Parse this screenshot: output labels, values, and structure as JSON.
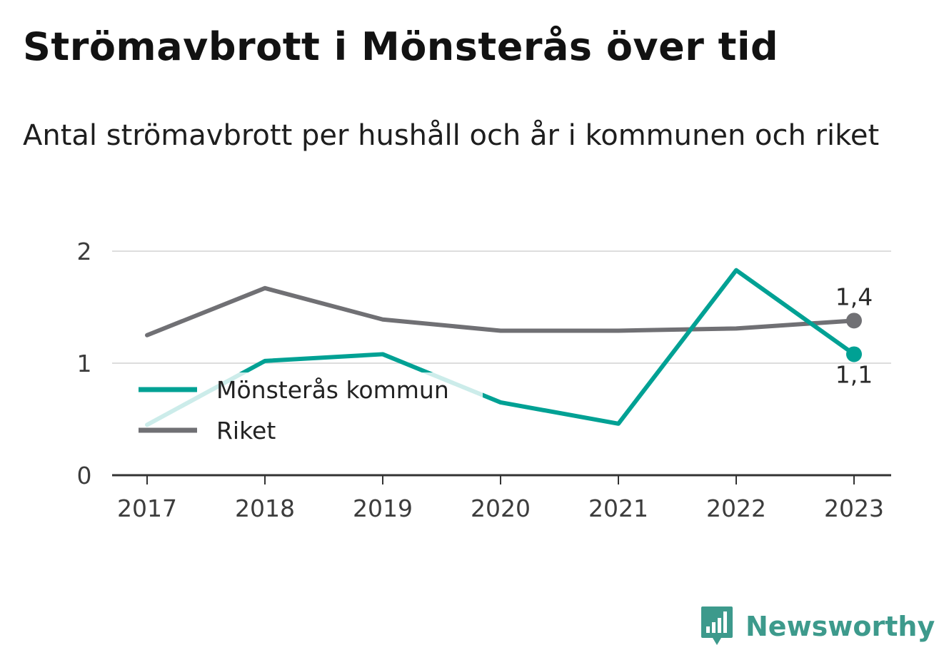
{
  "title": "Strömavbrott i Mönsterås över tid",
  "subtitle": "Antal strömavbrott per hushåll och år i kommunen och riket",
  "brand": {
    "name": "Newsworthy",
    "icon": "newsworthy-logo-icon"
  },
  "colors": {
    "kommun": "#00a194",
    "riket": "#707074",
    "grid": "#dddddd",
    "axis": "#333333"
  },
  "chart_data": {
    "type": "line",
    "categories": [
      "2017",
      "2018",
      "2019",
      "2020",
      "2021",
      "2022",
      "2023"
    ],
    "yticks": [
      "0",
      "1",
      "2"
    ],
    "ylim": [
      0,
      2
    ],
    "grid": true,
    "legend_position": "middle-left",
    "series": [
      {
        "name": "Mönsterås kommun",
        "values": [
          0.45,
          1.02,
          1.08,
          0.65,
          0.46,
          1.83,
          1.08
        ],
        "end_label": "1,1"
      },
      {
        "name": "Riket",
        "values": [
          1.25,
          1.67,
          1.39,
          1.29,
          1.29,
          1.31,
          1.38
        ],
        "end_label": "1,4"
      }
    ]
  }
}
